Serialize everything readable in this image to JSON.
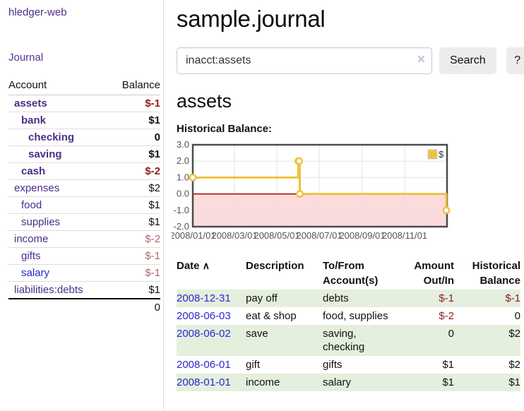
{
  "app": {
    "title": "hledger-web"
  },
  "sidebar": {
    "journal_link": "Journal",
    "table_headers": {
      "account": "Account",
      "balance": "Balance"
    },
    "accounts": [
      {
        "name": "assets",
        "indent": 0,
        "bold": true,
        "balance": "$-1"
      },
      {
        "name": "bank",
        "indent": 1,
        "bold": true,
        "balance": "$1"
      },
      {
        "name": "checking",
        "indent": 2,
        "bold": true,
        "balance": "0"
      },
      {
        "name": "saving",
        "indent": 2,
        "bold": true,
        "balance": "$1"
      },
      {
        "name": "cash",
        "indent": 1,
        "bold": true,
        "balance": "$-2"
      },
      {
        "name": "expenses",
        "indent": 0,
        "bold": false,
        "balance": "$2"
      },
      {
        "name": "food",
        "indent": 1,
        "bold": false,
        "balance": "$1"
      },
      {
        "name": "supplies",
        "indent": 1,
        "bold": false,
        "balance": "$1"
      },
      {
        "name": "income",
        "indent": 0,
        "bold": false,
        "balance": "$-2"
      },
      {
        "name": "gifts",
        "indent": 1,
        "bold": false,
        "balance": "$-1"
      },
      {
        "name": "salary",
        "indent": 1,
        "bold": false,
        "balance": "$-1",
        "style": "blue"
      },
      {
        "name": "liabilities:debts",
        "indent": 0,
        "bold": false,
        "balance": "$1"
      }
    ],
    "total": "0"
  },
  "main": {
    "title": "sample.journal",
    "search": {
      "value": "inacct:assets",
      "clear_icon": "×",
      "button_label": "Search",
      "help_label": "?"
    },
    "account_heading": "assets"
  },
  "chart_data": {
    "type": "line",
    "title": "Historical Balance:",
    "xlim": [
      "2008-01-01",
      "2009-01-01"
    ],
    "ylim": [
      -2,
      3
    ],
    "yticks": [
      3,
      2,
      1,
      0,
      -1,
      -2
    ],
    "xticks": [
      {
        "label": "2008/01/01",
        "date": "2008-01-01"
      },
      {
        "label": "2008/03/01",
        "date": "2008-03-01"
      },
      {
        "label": "2008/05/01",
        "date": "2008-05-01"
      },
      {
        "label": "2008/07/01",
        "date": "2008-07-01"
      },
      {
        "label": "2008/09/01",
        "date": "2008-09-01"
      },
      {
        "label": "2008/11/01",
        "date": "2008-11-01"
      }
    ],
    "series": [
      {
        "name": "$",
        "color": "#edc240",
        "step": true,
        "points": [
          [
            "2008-01-01",
            1
          ],
          [
            "2008-06-01",
            2
          ],
          [
            "2008-06-02",
            2
          ],
          [
            "2008-06-03",
            0
          ],
          [
            "2008-12-31",
            -1
          ]
        ]
      }
    ],
    "grid": true,
    "negative_fill": "#fbdbdb",
    "zero_line_color": "#a40000",
    "legend": {
      "label": "$",
      "swatch_color": "#edc240",
      "position": "top-right"
    }
  },
  "register": {
    "headers": {
      "date": "Date",
      "description": "Description",
      "accounts": "To/From Account(s)",
      "amount": "Amount Out/In",
      "balance": "Historical Balance"
    },
    "sort_indicator": "∧",
    "rows": [
      {
        "date": "2008-12-31",
        "description": "pay off",
        "accounts": "debts",
        "amount": "$-1",
        "balance": "$-1"
      },
      {
        "date": "2008-06-03",
        "description": "eat & shop",
        "accounts": "food, supplies",
        "amount": "$-2",
        "balance": "0"
      },
      {
        "date": "2008-06-02",
        "description": "save",
        "accounts": "saving, checking",
        "amount": "0",
        "balance": "$2"
      },
      {
        "date": "2008-06-01",
        "description": "gift",
        "accounts": "gifts",
        "amount": "$1",
        "balance": "$2"
      },
      {
        "date": "2008-01-01",
        "description": "income",
        "accounts": "salary",
        "amount": "$1",
        "balance": "$1"
      }
    ]
  }
}
